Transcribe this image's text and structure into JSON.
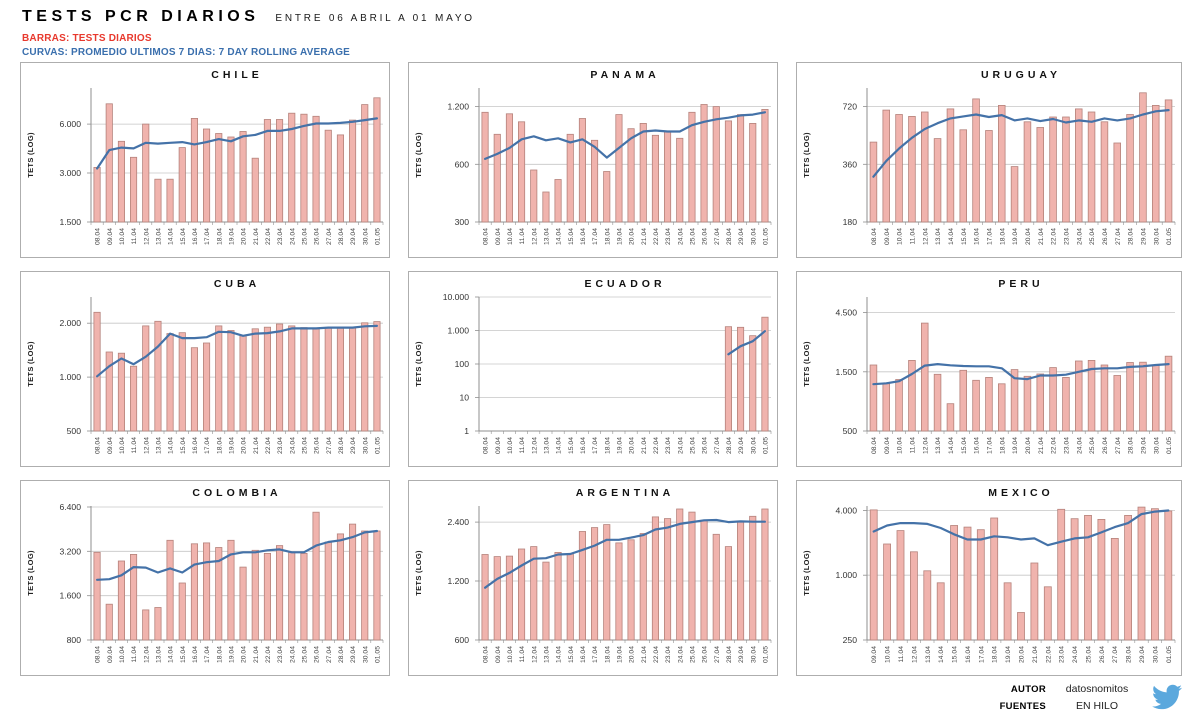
{
  "header": {
    "title": "TESTS PCR DIARIOS",
    "subtitle": "ENTRE 06 ABRIL A 01 MAYO",
    "legend_bars": "BARRAS: TESTS DIARIOS",
    "legend_line": "CURVAS: PROMEDIO ULTIMOS 7 DIAS: 7 DAY ROLLING AVERAGE"
  },
  "footer": {
    "author_label": "AUTOR",
    "author_value": "datosnomitos",
    "sources_label": "FUENTES",
    "sources_value": "EN HILO",
    "twitter_icon": "twitter-bird"
  },
  "colors": {
    "bar_fill": "#f0b3ad",
    "bar_border": "#b5827b",
    "line": "#4472a8",
    "grid": "#c6c6c6",
    "axis": "#8f8f8f",
    "legend_red": "#e8392d",
    "legend_blue": "#3a6fad",
    "twitter_blue": "#5ba8dd"
  },
  "chart_data": [
    {
      "title": "CHILE",
      "type": "bar",
      "yscale": "log",
      "ylabel": "TETS (LOG)",
      "ymin": 1500,
      "ymax": 10000,
      "yticks": [
        1500,
        3000,
        6000
      ],
      "ytick_labels": [
        "1.500",
        "3.000",
        "6.000"
      ],
      "categories": [
        "08.04",
        "09.04",
        "10.04",
        "11.04",
        "12.04",
        "13.04",
        "14.04",
        "15.04",
        "16.04",
        "17.04",
        "18.04",
        "19.04",
        "20.04",
        "21.04",
        "22.04",
        "23.04",
        "24.04",
        "25.04",
        "26.04",
        "27.04",
        "28.04",
        "29.04",
        "30.04",
        "01.05"
      ],
      "series": [
        {
          "name": "TESTS DIARIOS",
          "kind": "bar",
          "values": [
            3250,
            8000,
            4700,
            3750,
            6000,
            2750,
            2750,
            4300,
            6500,
            5600,
            5250,
            5000,
            5400,
            3700,
            6400,
            6400,
            7000,
            6900,
            6700,
            5500,
            5150,
            6350,
            7900,
            8700
          ]
        },
        {
          "name": "7 DAY ROLLING AVERAGE",
          "kind": "line",
          "values": [
            3200,
            4150,
            4300,
            4250,
            4600,
            4550,
            4600,
            4650,
            4500,
            4650,
            4850,
            4700,
            5050,
            5150,
            5450,
            5450,
            5600,
            5850,
            6050,
            6050,
            6100,
            6200,
            6350,
            6500
          ]
        }
      ]
    },
    {
      "title": "PANAMA",
      "type": "bar",
      "yscale": "log",
      "ylabel": "TETS (LOG)",
      "ymin": 300,
      "ymax": 1500,
      "yticks": [
        300,
        600,
        1200
      ],
      "ytick_labels": [
        "300",
        "600",
        "1.200"
      ],
      "categories": [
        "08.04",
        "09.04",
        "10.04",
        "11.04",
        "12.04",
        "13.04",
        "14.04",
        "15.04",
        "16.04",
        "17.04",
        "18.04",
        "19.04",
        "20.04",
        "21.04",
        "22.04",
        "23.04",
        "24.04",
        "25.04",
        "26.04",
        "27.04",
        "28.04",
        "29.04",
        "30.04",
        "01.05"
      ],
      "series": [
        {
          "name": "TESTS DIARIOS",
          "kind": "bar",
          "values": [
            1120,
            860,
            1100,
            1000,
            560,
            430,
            500,
            860,
            1040,
            800,
            550,
            1090,
            920,
            980,
            850,
            890,
            820,
            1120,
            1230,
            1200,
            1010,
            1090,
            980,
            1160
          ]
        },
        {
          "name": "7 DAY ROLLING AVERAGE",
          "kind": "line",
          "values": [
            640,
            680,
            730,
            810,
            840,
            800,
            820,
            780,
            810,
            740,
            650,
            730,
            820,
            890,
            900,
            890,
            890,
            960,
            1000,
            1030,
            1050,
            1080,
            1090,
            1120
          ]
        }
      ]
    },
    {
      "title": "URUGUAY",
      "type": "bar",
      "yscale": "log",
      "ylabel": "TETS (LOG)",
      "ymin": 180,
      "ymax": 900,
      "yticks": [
        180,
        360,
        720
      ],
      "ytick_labels": [
        "180",
        "360",
        "720"
      ],
      "categories": [
        "08.04",
        "09.04",
        "10.04",
        "11.04",
        "12.04",
        "13.04",
        "14.04",
        "15.04",
        "16.04",
        "17.04",
        "18.04",
        "19.04",
        "20.04",
        "21.04",
        "22.04",
        "23.04",
        "24.04",
        "25.04",
        "26.04",
        "27.04",
        "28.04",
        "29.04",
        "30.04",
        "01.05"
      ],
      "series": [
        {
          "name": "TESTS DIARIOS",
          "kind": "bar",
          "values": [
            470,
            690,
            655,
            640,
            675,
            490,
            700,
            545,
            790,
            540,
            730,
            350,
            600,
            560,
            635,
            635,
            700,
            675,
            600,
            465,
            655,
            850,
            730,
            780
          ]
        },
        {
          "name": "7 DAY ROLLING AVERAGE",
          "kind": "line",
          "values": [
            310,
            375,
            435,
            495,
            550,
            590,
            625,
            640,
            655,
            635,
            650,
            610,
            625,
            605,
            620,
            595,
            610,
            600,
            625,
            610,
            625,
            655,
            680,
            690
          ]
        }
      ]
    },
    {
      "title": "CUBA",
      "type": "bar",
      "yscale": "log",
      "ylabel": "TETS (LOG)",
      "ymin": 500,
      "ymax": 2800,
      "yticks": [
        500,
        1000,
        2000
      ],
      "ytick_labels": [
        "500",
        "1.000",
        "2.000"
      ],
      "categories": [
        "08.04",
        "09.04",
        "10.04",
        "11.04",
        "12.04",
        "13.04",
        "14.04",
        "15.04",
        "16.04",
        "17.04",
        "18.04",
        "19.04",
        "20.04",
        "21.04",
        "22.04",
        "23.04",
        "24.04",
        "25.04",
        "26.04",
        "27.04",
        "28.04",
        "29.04",
        "30.04",
        "01.05"
      ],
      "series": [
        {
          "name": "TESTS DIARIOS",
          "kind": "bar",
          "values": [
            2300,
            1380,
            1360,
            1150,
            1930,
            2050,
            1750,
            1770,
            1460,
            1550,
            1930,
            1820,
            1700,
            1860,
            1900,
            1980,
            1930,
            1890,
            1870,
            1890,
            1890,
            1880,
            2010,
            2040
          ]
        },
        {
          "name": "7 DAY ROLLING AVERAGE",
          "kind": "line",
          "values": [
            1010,
            1150,
            1270,
            1180,
            1300,
            1480,
            1750,
            1650,
            1650,
            1670,
            1790,
            1780,
            1700,
            1750,
            1760,
            1800,
            1870,
            1870,
            1870,
            1890,
            1890,
            1890,
            1920,
            1930
          ]
        }
      ]
    },
    {
      "title": "ECUADOR",
      "type": "bar",
      "yscale": "log",
      "ylabel": "TETS (LOG)",
      "ymin": 1,
      "ymax": 10000,
      "yticks": [
        1,
        10,
        100,
        1000,
        10000
      ],
      "ytick_labels": [
        "1",
        "10",
        "100",
        "1.000",
        "10.000"
      ],
      "categories": [
        "08.04",
        "09.04",
        "10.04",
        "11.04",
        "12.04",
        "13.04",
        "14.04",
        "15.04",
        "16.04",
        "17.04",
        "18.04",
        "19.04",
        "20.04",
        "21.04",
        "22.04",
        "23.04",
        "24.04",
        "25.04",
        "26.04",
        "27.04",
        "28.04",
        "29.04",
        "30.04",
        "01.05"
      ],
      "series": [
        {
          "name": "TESTS DIARIOS",
          "kind": "bar",
          "values": [
            null,
            null,
            null,
            null,
            null,
            null,
            null,
            null,
            null,
            null,
            null,
            null,
            null,
            null,
            null,
            null,
            null,
            null,
            null,
            null,
            1300,
            1250,
            700,
            2500
          ]
        },
        {
          "name": "7 DAY ROLLING AVERAGE",
          "kind": "line",
          "values": [
            null,
            null,
            null,
            null,
            null,
            null,
            null,
            null,
            null,
            null,
            null,
            null,
            null,
            null,
            null,
            null,
            null,
            null,
            null,
            null,
            195,
            340,
            480,
            950
          ]
        }
      ]
    },
    {
      "title": "PERU",
      "type": "bar",
      "yscale": "log",
      "ylabel": "TETS (LOG)",
      "ymin": 500,
      "ymax": 6000,
      "yticks": [
        500,
        1500,
        4500
      ],
      "ytick_labels": [
        "500",
        "1.500",
        "4.500"
      ],
      "categories": [
        "08.04",
        "09.04",
        "10.04",
        "11.04",
        "12.04",
        "13.04",
        "14.04",
        "15.04",
        "16.04",
        "17.04",
        "18.04",
        "19.04",
        "20.04",
        "21.04",
        "22.04",
        "23.04",
        "24.04",
        "25.04",
        "26.04",
        "27.04",
        "28.04",
        "29.04",
        "30.04",
        "01.05"
      ],
      "series": [
        {
          "name": "TESTS DIARIOS",
          "kind": "bar",
          "values": [
            1700,
            1200,
            1300,
            1850,
            3700,
            1430,
            830,
            1540,
            1280,
            1350,
            1200,
            1560,
            1380,
            1440,
            1620,
            1350,
            1830,
            1850,
            1700,
            1400,
            1780,
            1790,
            1680,
            2000
          ]
        },
        {
          "name": "7 DAY ROLLING AVERAGE",
          "kind": "line",
          "values": [
            1190,
            1210,
            1260,
            1440,
            1680,
            1730,
            1690,
            1670,
            1660,
            1660,
            1600,
            1330,
            1310,
            1400,
            1400,
            1420,
            1500,
            1580,
            1600,
            1600,
            1640,
            1660,
            1700,
            1730
          ]
        }
      ]
    },
    {
      "title": "COLOMBIA",
      "type": "bar",
      "yscale": "log",
      "ylabel": "TETS (LOG)",
      "ymin": 800,
      "ymax": 6500,
      "yticks": [
        800,
        1600,
        3200,
        6400
      ],
      "ytick_labels": [
        "800",
        "1.600",
        "3.200",
        "6.400"
      ],
      "categories": [
        "08.04",
        "09.04",
        "10.04",
        "11.04",
        "12.04",
        "13.04",
        "14.04",
        "15.04",
        "16.04",
        "17.04",
        "18.04",
        "19.04",
        "20.04",
        "21.04",
        "22.04",
        "23.04",
        "24.04",
        "25.04",
        "26.04",
        "27.04",
        "28.04",
        "29.04",
        "30.04",
        "01.05"
      ],
      "series": [
        {
          "name": "TESTS DIARIOS",
          "kind": "bar",
          "values": [
            3150,
            1400,
            2750,
            3050,
            1280,
            1330,
            3800,
            1950,
            3600,
            3650,
            3400,
            3800,
            2500,
            3250,
            3100,
            3500,
            3150,
            3100,
            5900,
            3700,
            4200,
            4900,
            4400,
            4400
          ]
        },
        {
          "name": "7 DAY ROLLING AVERAGE",
          "kind": "line",
          "values": [
            2050,
            2070,
            2200,
            2500,
            2480,
            2300,
            2450,
            2300,
            2600,
            2700,
            2750,
            3050,
            3150,
            3150,
            3250,
            3300,
            3150,
            3150,
            3500,
            3700,
            3800,
            4000,
            4300,
            4400
          ]
        }
      ]
    },
    {
      "title": "ARGENTINA",
      "type": "bar",
      "yscale": "log",
      "ylabel": "TETS (LOG)",
      "ymin": 600,
      "ymax": 2900,
      "yticks": [
        600,
        1200,
        2400
      ],
      "ytick_labels": [
        "600",
        "1.200",
        "2.400"
      ],
      "categories": [
        "08.04",
        "09.04",
        "10.04",
        "11.04",
        "12.04",
        "13.04",
        "14.04",
        "15.04",
        "16.04",
        "17.04",
        "18.04",
        "19.04",
        "20.04",
        "21.04",
        "22.04",
        "23.04",
        "24.04",
        "25.04",
        "26.04",
        "27.04",
        "28.04",
        "29.04",
        "30.04",
        "01.05"
      ],
      "series": [
        {
          "name": "TESTS DIARIOS",
          "kind": "bar",
          "values": [
            1640,
            1600,
            1610,
            1750,
            1800,
            1500,
            1680,
            1650,
            2150,
            2250,
            2330,
            1880,
            1950,
            2100,
            2550,
            2500,
            2800,
            2700,
            2440,
            2080,
            1800,
            2420,
            2570,
            2800
          ]
        },
        {
          "name": "7 DAY ROLLING AVERAGE",
          "kind": "line",
          "values": [
            1110,
            1230,
            1320,
            1440,
            1560,
            1570,
            1640,
            1650,
            1730,
            1820,
            1950,
            1950,
            2000,
            2060,
            2200,
            2250,
            2350,
            2400,
            2450,
            2460,
            2400,
            2420,
            2410,
            2410
          ]
        }
      ]
    },
    {
      "title": "MEXICO",
      "type": "bar",
      "yscale": "log",
      "ylabel": "TETS (LOG)",
      "ymin": 250,
      "ymax": 4400,
      "yticks": [
        250,
        1000,
        4000
      ],
      "ytick_labels": [
        "250",
        "1.000",
        "4.000"
      ],
      "categories": [
        "09.04",
        "10.04",
        "11.04",
        "12.04",
        "13.04",
        "14.04",
        "15.04",
        "16.04",
        "17.04",
        "18.04",
        "19.04",
        "20.04",
        "21.04",
        "22.04",
        "23.04",
        "24.04",
        "25.04",
        "26.04",
        "27.04",
        "28.04",
        "29.04",
        "30.04",
        "01.05"
      ],
      "series": [
        {
          "name": "TESTS DIARIOS",
          "kind": "bar",
          "values": [
            4050,
            1950,
            2600,
            1650,
            1100,
            850,
            2900,
            2800,
            2650,
            3400,
            850,
            450,
            1300,
            780,
            4100,
            3350,
            3600,
            3300,
            2200,
            3600,
            4300,
            4150,
            3950
          ]
        },
        {
          "name": "7 DAY ROLLING AVERAGE",
          "kind": "line",
          "values": [
            2550,
            2900,
            3050,
            3050,
            3000,
            2750,
            2400,
            2150,
            2150,
            2300,
            2250,
            2150,
            2200,
            1900,
            2050,
            2200,
            2250,
            2500,
            2800,
            3050,
            3700,
            3900,
            4000
          ]
        }
      ]
    }
  ]
}
